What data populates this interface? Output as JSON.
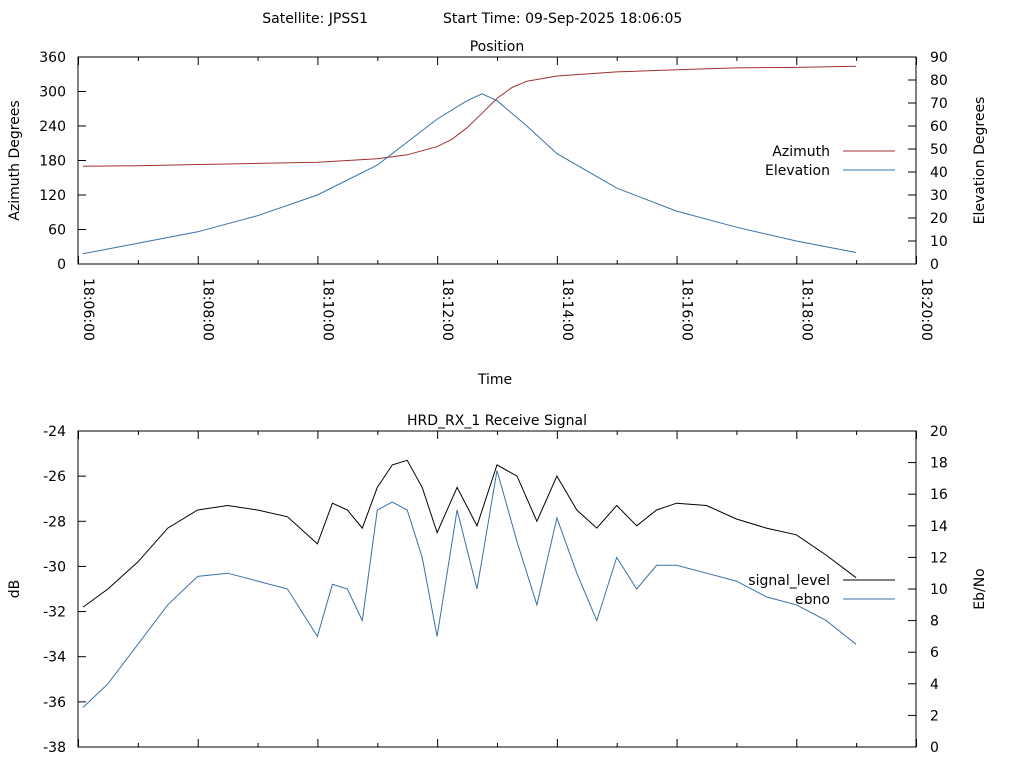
{
  "header": {
    "satellite": "Satellite: JPSS1",
    "start_time": "Start Time: 09-Sep-2025 18:06:05"
  },
  "chart_data": [
    {
      "type": "line",
      "title": "Position",
      "xlabel": "Time",
      "ylabel": "Azimuth Degrees",
      "y2label": "Elevation Degrees",
      "xlim": [
        "18:06:00",
        "18:20:00"
      ],
      "x_ticks": [
        "18:06:00",
        "18:08:00",
        "18:10:00",
        "18:12:00",
        "18:14:00",
        "18:16:00",
        "18:18:00",
        "18:20:00"
      ],
      "ylim": [
        0,
        360
      ],
      "y_ticks": [
        "0",
        "60",
        "120",
        "180",
        "240",
        "300",
        "360"
      ],
      "y2lim": [
        0,
        90
      ],
      "y2_ticks": [
        "0",
        "10",
        "20",
        "30",
        "40",
        "50",
        "60",
        "70",
        "80",
        "90"
      ],
      "legend_position": "right",
      "series": [
        {
          "name": "Azimuth",
          "axis": "y",
          "color": "#a03030",
          "x": [
            "18:06:05",
            "18:07:00",
            "18:08:00",
            "18:09:00",
            "18:10:00",
            "18:11:00",
            "18:11:30",
            "18:12:00",
            "18:12:15",
            "18:12:30",
            "18:12:45",
            "18:13:00",
            "18:13:15",
            "18:13:30",
            "18:14:00",
            "18:15:00",
            "18:16:00",
            "18:17:00",
            "18:18:00",
            "18:19:00"
          ],
          "values": [
            170,
            171,
            173,
            175,
            177,
            183,
            190,
            204,
            217,
            237,
            262,
            288,
            307,
            318,
            327,
            334,
            338,
            341,
            342,
            344
          ]
        },
        {
          "name": "Elevation",
          "axis": "y2",
          "color": "#3a70a8",
          "x": [
            "18:06:05",
            "18:07:00",
            "18:08:00",
            "18:09:00",
            "18:10:00",
            "18:11:00",
            "18:11:30",
            "18:12:00",
            "18:12:30",
            "18:12:45",
            "18:13:00",
            "18:13:30",
            "18:14:00",
            "18:15:00",
            "18:16:00",
            "18:17:00",
            "18:18:00",
            "18:19:00"
          ],
          "values": [
            4.5,
            9,
            14,
            21,
            30,
            43,
            53,
            63,
            71,
            74,
            71,
            60,
            48,
            33,
            23,
            16,
            10,
            5
          ]
        }
      ]
    },
    {
      "type": "line",
      "title": "HRD_RX_1 Receive Signal",
      "ylabel": "dB",
      "y2label": "Eb/No",
      "xlim": [
        "18:06:00",
        "18:20:00"
      ],
      "ylim": [
        -38,
        -24
      ],
      "y_ticks": [
        "-38",
        "-36",
        "-34",
        "-32",
        "-30",
        "-28",
        "-26",
        "-24"
      ],
      "y2lim": [
        0,
        20
      ],
      "y2_ticks": [
        "0",
        "2",
        "4",
        "6",
        "8",
        "10",
        "12",
        "14",
        "16",
        "18",
        "20"
      ],
      "legend_position": "right",
      "series": [
        {
          "name": "signal_level",
          "axis": "y",
          "color": "#000000",
          "x": [
            "18:06:05",
            "18:06:30",
            "18:07:00",
            "18:07:30",
            "18:08:00",
            "18:08:30",
            "18:09:00",
            "18:09:30",
            "18:10:00",
            "18:10:15",
            "18:10:30",
            "18:10:45",
            "18:11:00",
            "18:11:15",
            "18:11:30",
            "18:11:45",
            "18:12:00",
            "18:12:20",
            "18:12:40",
            "18:13:00",
            "18:13:20",
            "18:13:40",
            "18:14:00",
            "18:14:20",
            "18:14:40",
            "18:15:00",
            "18:15:20",
            "18:15:40",
            "18:16:00",
            "18:16:30",
            "18:17:00",
            "18:17:30",
            "18:18:00",
            "18:18:30",
            "18:19:00"
          ],
          "values": [
            -31.8,
            -31,
            -29.8,
            -28.3,
            -27.5,
            -27.3,
            -27.5,
            -27.8,
            -29,
            -27.2,
            -27.5,
            -28.3,
            -26.5,
            -25.5,
            -25.3,
            -26.5,
            -28.5,
            -26.5,
            -28.2,
            -25.5,
            -26,
            -28,
            -26,
            -27.5,
            -28.3,
            -27.3,
            -28.2,
            -27.5,
            -27.2,
            -27.3,
            -27.9,
            -28.3,
            -28.6,
            -29.5,
            -30.5
          ]
        },
        {
          "name": "ebno",
          "axis": "y2",
          "color": "#3a70a8",
          "x": [
            "18:06:05",
            "18:06:30",
            "18:07:00",
            "18:07:30",
            "18:08:00",
            "18:08:30",
            "18:09:00",
            "18:09:30",
            "18:10:00",
            "18:10:15",
            "18:10:30",
            "18:10:45",
            "18:11:00",
            "18:11:15",
            "18:11:30",
            "18:11:45",
            "18:12:00",
            "18:12:20",
            "18:12:40",
            "18:13:00",
            "18:13:20",
            "18:13:40",
            "18:14:00",
            "18:14:20",
            "18:14:40",
            "18:15:00",
            "18:15:20",
            "18:15:40",
            "18:16:00",
            "18:16:30",
            "18:17:00",
            "18:17:30",
            "18:18:00",
            "18:18:30",
            "18:19:00"
          ],
          "values": [
            2.5,
            4,
            6.5,
            9,
            10.8,
            11,
            10.5,
            10,
            7,
            10.3,
            10,
            8,
            15,
            15.5,
            15,
            12,
            7,
            15,
            10,
            17.5,
            13,
            9,
            14.5,
            11,
            8,
            12,
            10,
            11.5,
            11.5,
            11,
            10.5,
            9.5,
            9,
            8,
            6.5
          ]
        }
      ]
    }
  ]
}
